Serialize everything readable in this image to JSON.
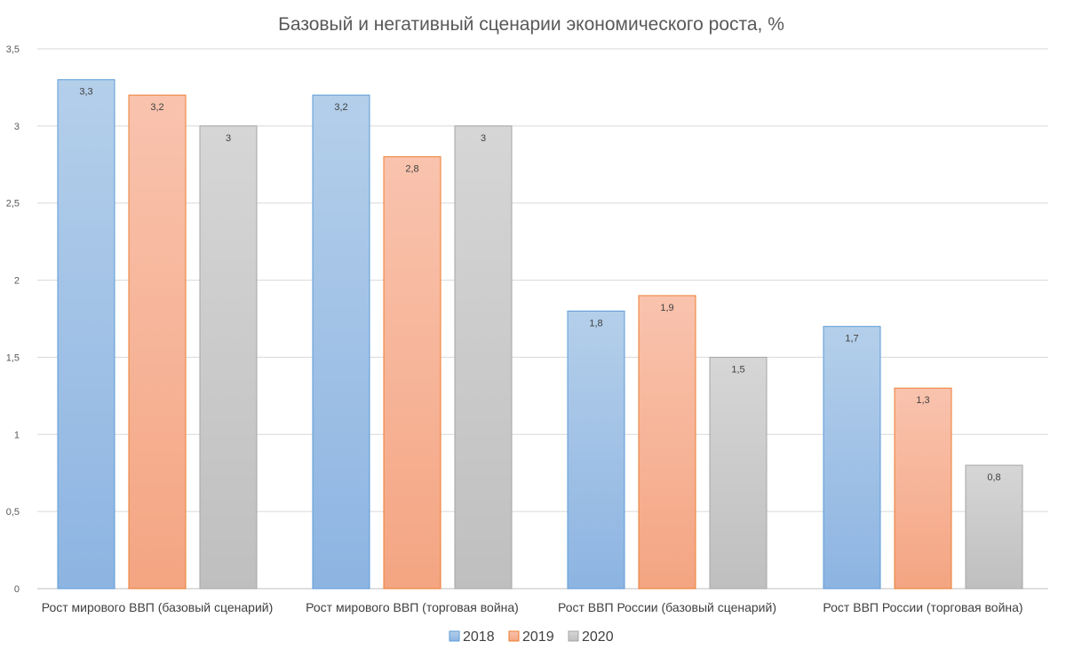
{
  "chart_data": {
    "type": "bar",
    "title": "Базовый и негативный сценарии экономического роста, %",
    "categories": [
      "Рост мирового ВВП (базовый сценарий)",
      "Рост мирового ВВП (торговая война)",
      "Рост ВВП России (базовый сценарий)",
      "Рост ВВП России (торговая война)"
    ],
    "series": [
      {
        "name": "2018",
        "values": [
          3.3,
          3.2,
          1.8,
          1.7
        ],
        "labels": [
          "3,3",
          "3,2",
          "1,8",
          "1,7"
        ],
        "color": "#9dc3e6",
        "color_top": "#b4cfea",
        "color_bottom": "#8db4e2",
        "stroke": "#5b9bd5"
      },
      {
        "name": "2019",
        "values": [
          3.2,
          2.8,
          1.9,
          1.3
        ],
        "labels": [
          "3,2",
          "2,8",
          "1,9",
          "1,3"
        ],
        "color": "#f8b39a",
        "color_top": "#f9c3ae",
        "color_bottom": "#f4a582",
        "stroke": "#ed7d31"
      },
      {
        "name": "2020",
        "values": [
          3.0,
          3.0,
          1.5,
          0.8
        ],
        "labels": [
          "3",
          "3",
          "1,5",
          "0,8"
        ],
        "color": "#c9c9c9",
        "color_top": "#d6d6d6",
        "color_bottom": "#bfbfbf",
        "stroke": "#a5a5a5"
      }
    ],
    "y_ticks": [
      0,
      0.5,
      1,
      1.5,
      2,
      2.5,
      3,
      3.5
    ],
    "y_tick_labels": [
      "0",
      "0,5",
      "1",
      "1,5",
      "2",
      "2,5",
      "3",
      "3,5"
    ],
    "ylim": [
      0,
      3.5
    ],
    "xlabel": "",
    "ylabel": "",
    "grid": true,
    "legend_position": "bottom",
    "data_labels": true
  }
}
